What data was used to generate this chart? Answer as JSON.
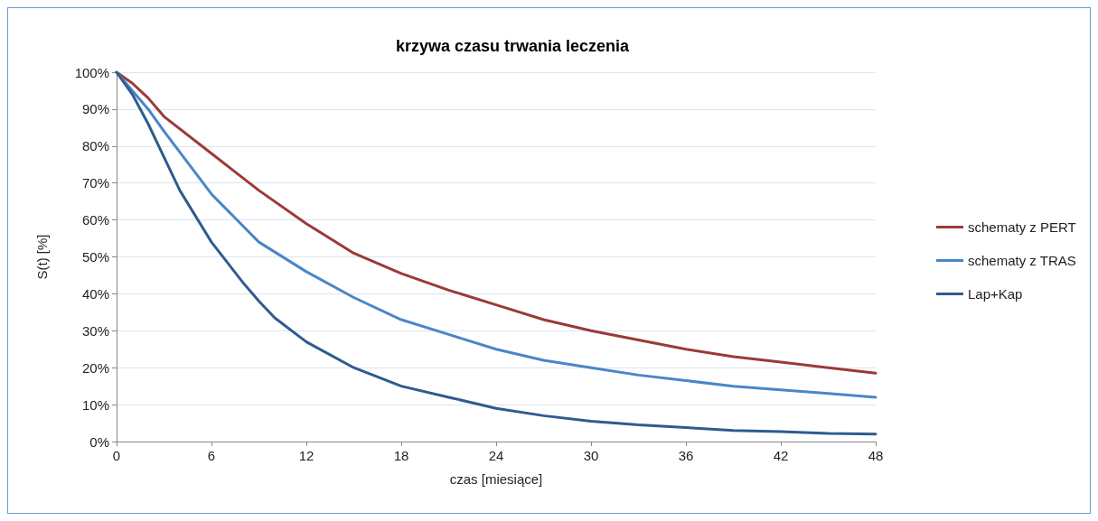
{
  "chart_data": {
    "type": "line",
    "title": "krzywa czasu trwania leczenia",
    "xlabel": "czas [miesiące]",
    "ylabel": "S(t) [%]",
    "xlim": [
      0,
      48
    ],
    "xticks": [
      0,
      6,
      12,
      18,
      24,
      30,
      36,
      42,
      48
    ],
    "ylim": [
      0,
      100
    ],
    "yticks": [
      {
        "value": 0,
        "label": "0%"
      },
      {
        "value": 10,
        "label": "10%"
      },
      {
        "value": 20,
        "label": "20%"
      },
      {
        "value": 30,
        "label": "30%"
      },
      {
        "value": 40,
        "label": "40%"
      },
      {
        "value": 50,
        "label": "50%"
      },
      {
        "value": 60,
        "label": "60%"
      },
      {
        "value": 70,
        "label": "70%"
      },
      {
        "value": 80,
        "label": "80%"
      },
      {
        "value": 90,
        "label": "90%"
      },
      {
        "value": 100,
        "label": "100%"
      }
    ],
    "grid": "y",
    "legend": "right",
    "marker": "none",
    "line_style": "solid",
    "series": [
      {
        "name": "schematy z PERT",
        "color": "#9b3a38",
        "x": [
          0,
          1,
          2,
          3,
          6,
          9,
          12,
          15,
          18,
          21,
          24,
          27,
          30,
          33,
          36,
          39,
          42,
          45,
          48
        ],
        "values": [
          100,
          97,
          93,
          88,
          78,
          68,
          59,
          51,
          45.5,
          41,
          37,
          33,
          30,
          27.5,
          25,
          23,
          21.5,
          20,
          18.5
        ]
      },
      {
        "name": "schematy z TRAS",
        "color": "#4a86c8",
        "x": [
          0,
          1,
          2,
          3,
          6,
          9,
          12,
          15,
          18,
          21,
          24,
          27,
          30,
          33,
          36,
          39,
          42,
          45,
          48
        ],
        "values": [
          100,
          95,
          90,
          84,
          67,
          54,
          46,
          39,
          33,
          29,
          25,
          22,
          20,
          18,
          16.5,
          15,
          14,
          13,
          12
        ]
      },
      {
        "name": "Lap+Kap",
        "color": "#2f5b8f",
        "x": [
          0,
          1,
          2,
          3,
          4,
          6,
          8,
          9,
          10,
          12,
          15,
          18,
          21,
          24,
          27,
          30,
          33,
          36,
          39,
          42,
          45,
          48
        ],
        "values": [
          100,
          94,
          86,
          77,
          68,
          54,
          43,
          38,
          33.5,
          27,
          20,
          15,
          12,
          9,
          7,
          5.5,
          4.5,
          3.8,
          3,
          2.7,
          2.2,
          2
        ]
      }
    ]
  }
}
